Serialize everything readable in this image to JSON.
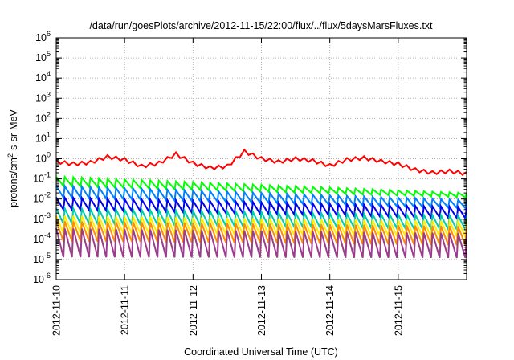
{
  "chart_data": {
    "type": "line",
    "title": "/data/run/goesPlots/archive/2012-11-15/22:00/flux/../flux/5daysMarsFluxes.txt",
    "xlabel": "Coordinated Universal Time (UTC)",
    "ylabel": {
      "base": "protons/cm",
      "sup": "2",
      "rest": "-s-sr-MeV"
    },
    "xlim": [
      "2012-11-10",
      "2012-11-16"
    ],
    "x_ticks": [
      "2012-11-10",
      "2012-11-11",
      "2012-11-12",
      "2012-11-13",
      "2012-11-14",
      "2012-11-15"
    ],
    "y_scale": "log",
    "ylim": [
      1e-06,
      1000000.0
    ],
    "y_tick_exponents": [
      -6,
      -5,
      -4,
      -3,
      -2,
      -1,
      0,
      1,
      2,
      3,
      4,
      5,
      6
    ],
    "y_tick_base": "10",
    "grid": true,
    "legend": "none",
    "sawtooth_period_hours": 3,
    "series": [
      {
        "color": "#ff0000",
        "style": "slow-sawtooth",
        "profile": [
          {
            "date": "2012-11-10T00:00",
            "value": 0.72
          },
          {
            "date": "2012-11-10T06:00",
            "value": 0.55
          },
          {
            "date": "2012-11-10T12:00",
            "value": 0.65
          },
          {
            "date": "2012-11-10T18:00",
            "value": 1.25
          },
          {
            "date": "2012-11-11T00:00",
            "value": 0.9
          },
          {
            "date": "2012-11-11T06:00",
            "value": 0.42
          },
          {
            "date": "2012-11-11T12:00",
            "value": 0.6
          },
          {
            "date": "2012-11-11T18:00",
            "value": 1.7
          },
          {
            "date": "2012-11-12T00:00",
            "value": 0.6
          },
          {
            "date": "2012-11-12T06:00",
            "value": 0.35
          },
          {
            "date": "2012-11-12T12:00",
            "value": 0.42
          },
          {
            "date": "2012-11-12T18:00",
            "value": 2.3
          },
          {
            "date": "2012-11-13T00:00",
            "value": 1.0
          },
          {
            "date": "2012-11-13T06:00",
            "value": 0.7
          },
          {
            "date": "2012-11-13T12:00",
            "value": 1.0
          },
          {
            "date": "2012-11-13T18:00",
            "value": 0.8
          },
          {
            "date": "2012-11-14T00:00",
            "value": 0.45
          },
          {
            "date": "2012-11-14T06:00",
            "value": 0.9
          },
          {
            "date": "2012-11-14T12:00",
            "value": 1.1
          },
          {
            "date": "2012-11-14T18:00",
            "value": 0.75
          },
          {
            "date": "2012-11-15T00:00",
            "value": 0.55
          },
          {
            "date": "2012-11-15T06:00",
            "value": 0.28
          },
          {
            "date": "2012-11-15T12:00",
            "value": 0.2
          },
          {
            "date": "2012-11-15T18:00",
            "value": 0.24
          },
          {
            "date": "2012-11-16T00:00",
            "value": 0.18
          }
        ]
      },
      {
        "color": "#00ff00",
        "style": "sawtooth",
        "peaks": [
          {
            "date": "2012-11-10T00:00",
            "value": 0.13
          },
          {
            "date": "2012-11-16T00:00",
            "value": 0.02
          }
        ],
        "troughs": [
          {
            "date": "2012-11-10T00:00",
            "value": 0.045
          },
          {
            "date": "2012-11-16T00:00",
            "value": 0.012
          }
        ]
      },
      {
        "color": "#0080ff",
        "style": "sawtooth",
        "peaks": [
          {
            "date": "2012-11-10T00:00",
            "value": 0.045
          },
          {
            "date": "2012-11-16T00:00",
            "value": 0.009
          }
        ],
        "troughs": [
          {
            "date": "2012-11-10T00:00",
            "value": 0.012
          },
          {
            "date": "2012-11-16T00:00",
            "value": 0.0035
          }
        ]
      },
      {
        "color": "#0000ee",
        "style": "sawtooth",
        "peaks": [
          {
            "date": "2012-11-10T00:00",
            "value": 0.012
          },
          {
            "date": "2012-11-16T00:00",
            "value": 0.004
          }
        ],
        "troughs": [
          {
            "date": "2012-11-10T00:00",
            "value": 0.003
          },
          {
            "date": "2012-11-16T00:00",
            "value": 0.0011
          }
        ]
      },
      {
        "color": "#00ccaa",
        "style": "sawtooth",
        "peaks": [
          {
            "date": "2012-11-10T00:00",
            "value": 0.0035
          },
          {
            "date": "2012-11-16T00:00",
            "value": 0.0015
          }
        ],
        "troughs": [
          {
            "date": "2012-11-10T00:00",
            "value": 0.0006
          },
          {
            "date": "2012-11-16T00:00",
            "value": 0.0003
          }
        ]
      },
      {
        "color": "#ffee00",
        "style": "sawtooth",
        "peaks": [
          {
            "date": "2012-11-10T00:00",
            "value": 0.0015
          },
          {
            "date": "2012-11-16T00:00",
            "value": 0.0008
          }
        ],
        "troughs": [
          {
            "date": "2012-11-10T00:00",
            "value": 0.0002
          },
          {
            "date": "2012-11-16T00:00",
            "value": 0.00013
          }
        ]
      },
      {
        "color": "#ff8c00",
        "style": "sawtooth",
        "peaks": [
          {
            "date": "2012-11-10T00:00",
            "value": 0.0008
          },
          {
            "date": "2012-11-16T00:00",
            "value": 0.00045
          }
        ],
        "troughs": [
          {
            "date": "2012-11-10T00:00",
            "value": 8e-05
          },
          {
            "date": "2012-11-16T00:00",
            "value": 5e-05
          }
        ]
      },
      {
        "color": "#9b3d8c",
        "style": "sawtooth",
        "peaks": [
          {
            "date": "2012-11-10T00:00",
            "value": 0.00035
          },
          {
            "date": "2012-11-16T00:00",
            "value": 0.0002
          }
        ],
        "troughs": [
          {
            "date": "2012-11-10T00:00",
            "value": 1.3e-05
          },
          {
            "date": "2012-11-16T00:00",
            "value": 1.2e-05
          }
        ]
      }
    ]
  }
}
